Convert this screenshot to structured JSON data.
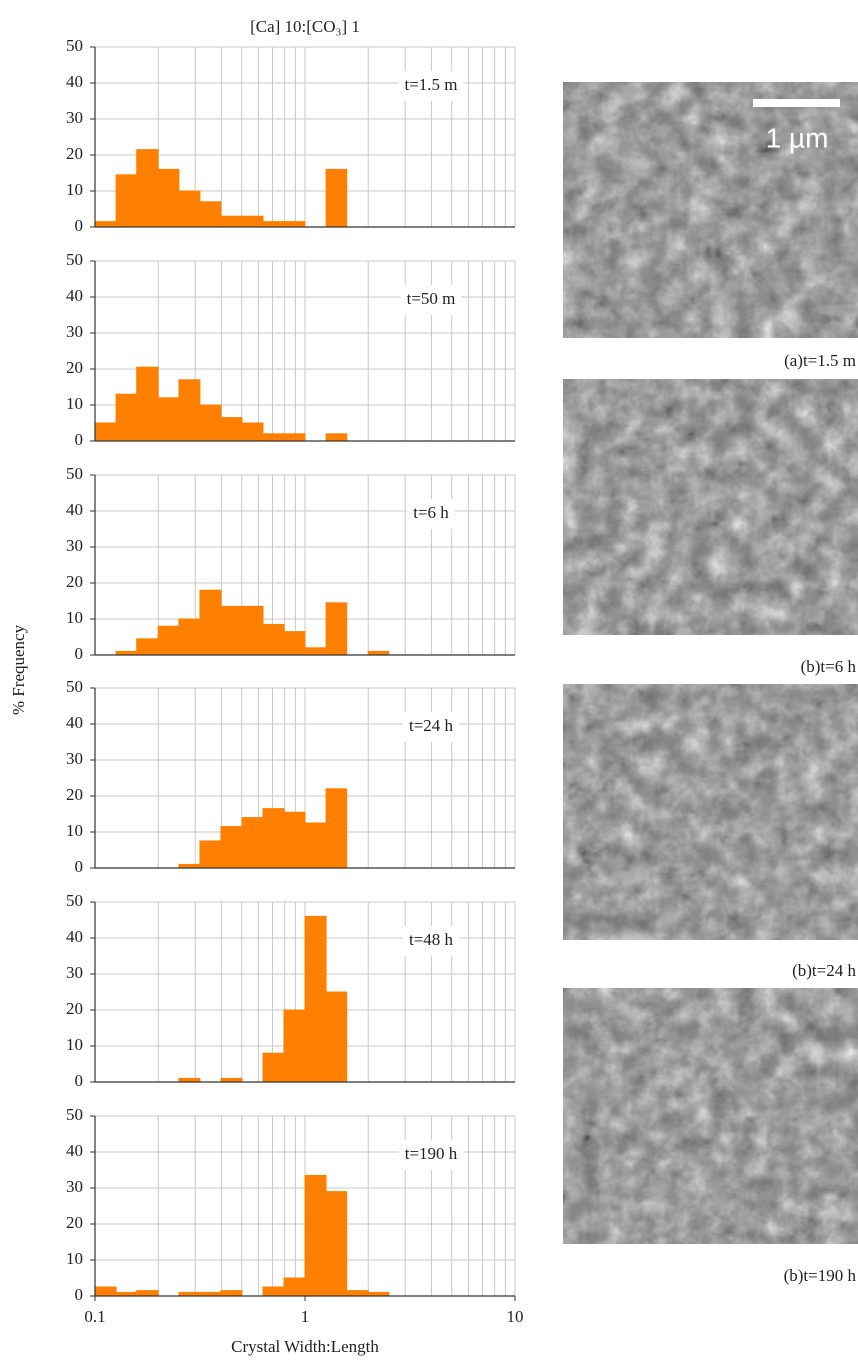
{
  "title": "[Ca] 10:[CO₃] 1",
  "ylabel": "% Frequency",
  "xlabel": "Crystal Width:Length",
  "chart_data": [
    {
      "type": "histogram",
      "annotation": "t=1.5 m",
      "color": "#ff8000",
      "xscale": "log",
      "xlim": [
        0.1,
        10
      ],
      "ylim": [
        0,
        50
      ],
      "yticks": [
        0,
        10,
        20,
        30,
        40,
        50
      ],
      "xgrid": [
        0.1,
        0.2,
        0.3,
        0.4,
        0.5,
        0.6,
        0.7,
        0.8,
        0.9,
        1,
        2,
        3,
        4,
        5,
        6,
        7,
        8,
        9,
        10
      ],
      "bins": [
        0.1,
        0.126,
        0.158,
        0.2,
        0.251,
        0.316,
        0.398,
        0.501,
        0.631,
        0.794,
        1,
        1.26,
        1.58,
        2,
        2.51,
        3.16
      ],
      "values": [
        1.5,
        14.5,
        21.5,
        16,
        10,
        7,
        3,
        3,
        1.5,
        1.5,
        0,
        16,
        0,
        0,
        0
      ]
    },
    {
      "type": "histogram",
      "annotation": "t=50 m",
      "color": "#ff8000",
      "xscale": "log",
      "xlim": [
        0.1,
        10
      ],
      "ylim": [
        0,
        50
      ],
      "yticks": [
        0,
        10,
        20,
        30,
        40,
        50
      ],
      "xgrid": [
        0.1,
        0.2,
        0.3,
        0.4,
        0.5,
        0.6,
        0.7,
        0.8,
        0.9,
        1,
        2,
        3,
        4,
        5,
        6,
        7,
        8,
        9,
        10
      ],
      "bins": [
        0.1,
        0.126,
        0.158,
        0.2,
        0.251,
        0.316,
        0.398,
        0.501,
        0.631,
        0.794,
        1,
        1.26,
        1.58,
        2,
        2.51,
        3.16
      ],
      "values": [
        5,
        13,
        20.5,
        12,
        17,
        10,
        6.5,
        5,
        2,
        2,
        0,
        2,
        0,
        0,
        0
      ]
    },
    {
      "type": "histogram",
      "annotation": "t=6 h",
      "color": "#ff8000",
      "xscale": "log",
      "xlim": [
        0.1,
        10
      ],
      "ylim": [
        0,
        50
      ],
      "yticks": [
        0,
        10,
        20,
        30,
        40,
        50
      ],
      "xgrid": [
        0.1,
        0.2,
        0.3,
        0.4,
        0.5,
        0.6,
        0.7,
        0.8,
        0.9,
        1,
        2,
        3,
        4,
        5,
        6,
        7,
        8,
        9,
        10
      ],
      "bins": [
        0.1,
        0.126,
        0.158,
        0.2,
        0.251,
        0.316,
        0.398,
        0.501,
        0.631,
        0.794,
        1,
        1.26,
        1.58,
        2,
        2.51,
        3.16
      ],
      "values": [
        0,
        1,
        4.5,
        8,
        10,
        18,
        13.5,
        13.5,
        8.5,
        6.5,
        2,
        14.5,
        0,
        1,
        0
      ]
    },
    {
      "type": "histogram",
      "annotation": "t=24 h",
      "color": "#ff8000",
      "xscale": "log",
      "xlim": [
        0.1,
        10
      ],
      "ylim": [
        0,
        50
      ],
      "yticks": [
        0,
        10,
        20,
        30,
        40,
        50
      ],
      "xgrid": [
        0.1,
        0.2,
        0.3,
        0.4,
        0.5,
        0.6,
        0.7,
        0.8,
        0.9,
        1,
        2,
        3,
        4,
        5,
        6,
        7,
        8,
        9,
        10
      ],
      "bins": [
        0.1,
        0.126,
        0.158,
        0.2,
        0.251,
        0.316,
        0.398,
        0.501,
        0.631,
        0.794,
        1,
        1.26,
        1.58,
        2,
        2.51,
        3.16
      ],
      "values": [
        0,
        0,
        0,
        0,
        1,
        7.5,
        11.5,
        14,
        16.5,
        15.5,
        12.5,
        22,
        0,
        0,
        0
      ]
    },
    {
      "type": "histogram",
      "annotation": "t=48 h",
      "color": "#ff8000",
      "xscale": "log",
      "xlim": [
        0.1,
        10
      ],
      "ylim": [
        0,
        50
      ],
      "yticks": [
        0,
        10,
        20,
        30,
        40,
        50
      ],
      "xgrid": [
        0.1,
        0.2,
        0.3,
        0.4,
        0.5,
        0.6,
        0.7,
        0.8,
        0.9,
        1,
        2,
        3,
        4,
        5,
        6,
        7,
        8,
        9,
        10
      ],
      "bins": [
        0.1,
        0.126,
        0.158,
        0.2,
        0.251,
        0.316,
        0.398,
        0.501,
        0.631,
        0.794,
        1,
        1.26,
        1.58,
        2,
        2.51,
        3.16
      ],
      "values": [
        0,
        0,
        0,
        0,
        1,
        0,
        1,
        0,
        8,
        20,
        46,
        25,
        0,
        0,
        0
      ]
    },
    {
      "type": "histogram",
      "annotation": "t=190 h",
      "color": "#ff8000",
      "xscale": "log",
      "xlim": [
        0.1,
        10
      ],
      "ylim": [
        0,
        50
      ],
      "yticks": [
        0,
        10,
        20,
        30,
        40,
        50
      ],
      "xgrid": [
        0.1,
        0.2,
        0.3,
        0.4,
        0.5,
        0.6,
        0.7,
        0.8,
        0.9,
        1,
        2,
        3,
        4,
        5,
        6,
        7,
        8,
        9,
        10
      ],
      "xticks": [
        0.1,
        1,
        10
      ],
      "bins": [
        0.1,
        0.126,
        0.158,
        0.2,
        0.251,
        0.316,
        0.398,
        0.501,
        0.631,
        0.794,
        1,
        1.26,
        1.58,
        2,
        2.51,
        3.16
      ],
      "values": [
        2.5,
        1,
        1.5,
        0,
        1,
        1,
        1.5,
        0,
        2.5,
        5,
        33.5,
        29,
        1.5,
        1,
        0
      ]
    }
  ],
  "images": [
    {
      "caption": "(a)t=1.5 m",
      "scale_bar": "1 µm"
    },
    {
      "caption": "(b)t=6 h"
    },
    {
      "caption": "(b)t=24 h"
    },
    {
      "caption": "(b)t=190 h"
    }
  ]
}
